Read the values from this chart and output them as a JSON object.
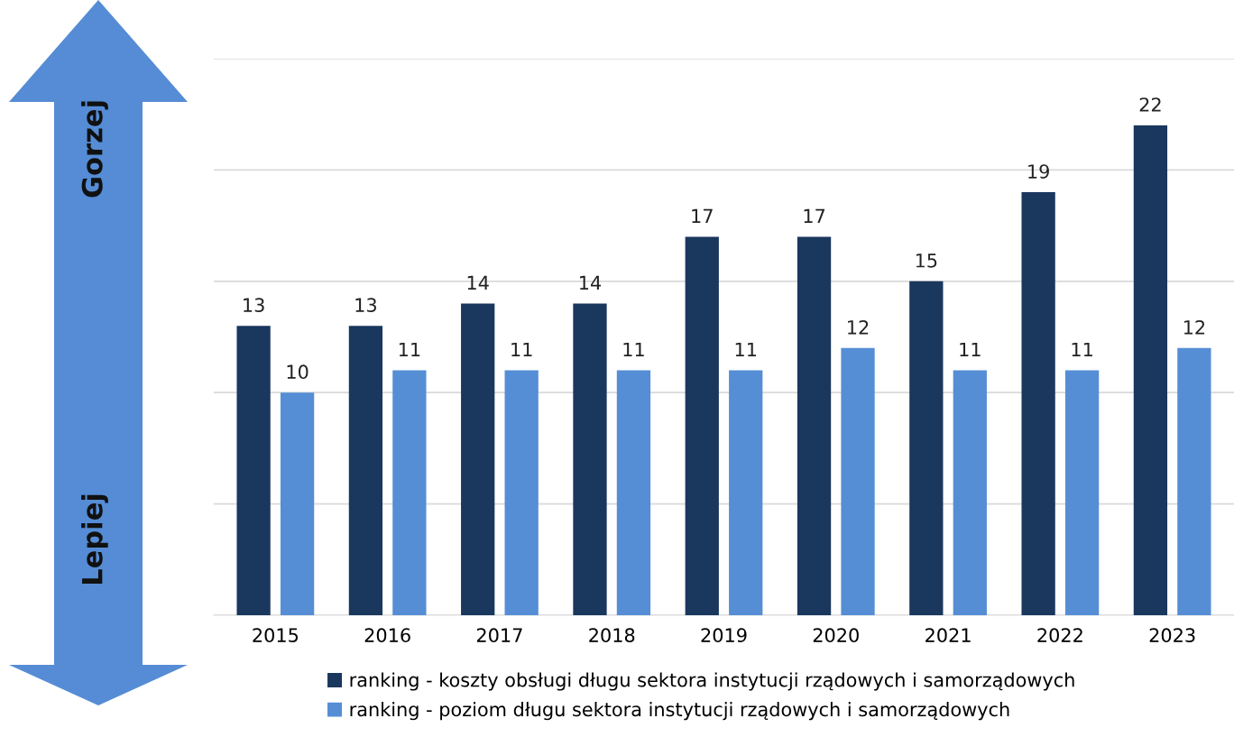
{
  "chart_data": {
    "type": "bar",
    "categories": [
      "2015",
      "2016",
      "2017",
      "2018",
      "2019",
      "2020",
      "2021",
      "2022",
      "2023"
    ],
    "series": [
      {
        "name": "ranking - koszty obsługi długu sektora instytucji rządowych i samorządowych",
        "color": "#1a375e",
        "values": [
          13,
          13,
          14,
          14,
          17,
          17,
          15,
          19,
          22
        ]
      },
      {
        "name": "ranking - poziom długu sektora instytucji rządowych i samorządowych",
        "color": "#558ed5",
        "values": [
          10,
          11,
          11,
          11,
          11,
          12,
          11,
          11,
          12
        ]
      }
    ],
    "ylim": [
      0,
      25
    ],
    "yticks": [
      0,
      5,
      10,
      15,
      20,
      25
    ],
    "tick_labels": "x",
    "grid": "y",
    "data_labels": true,
    "legend": "bottom",
    "annotations": [
      "Gorzej",
      "Lepiej"
    ]
  }
}
